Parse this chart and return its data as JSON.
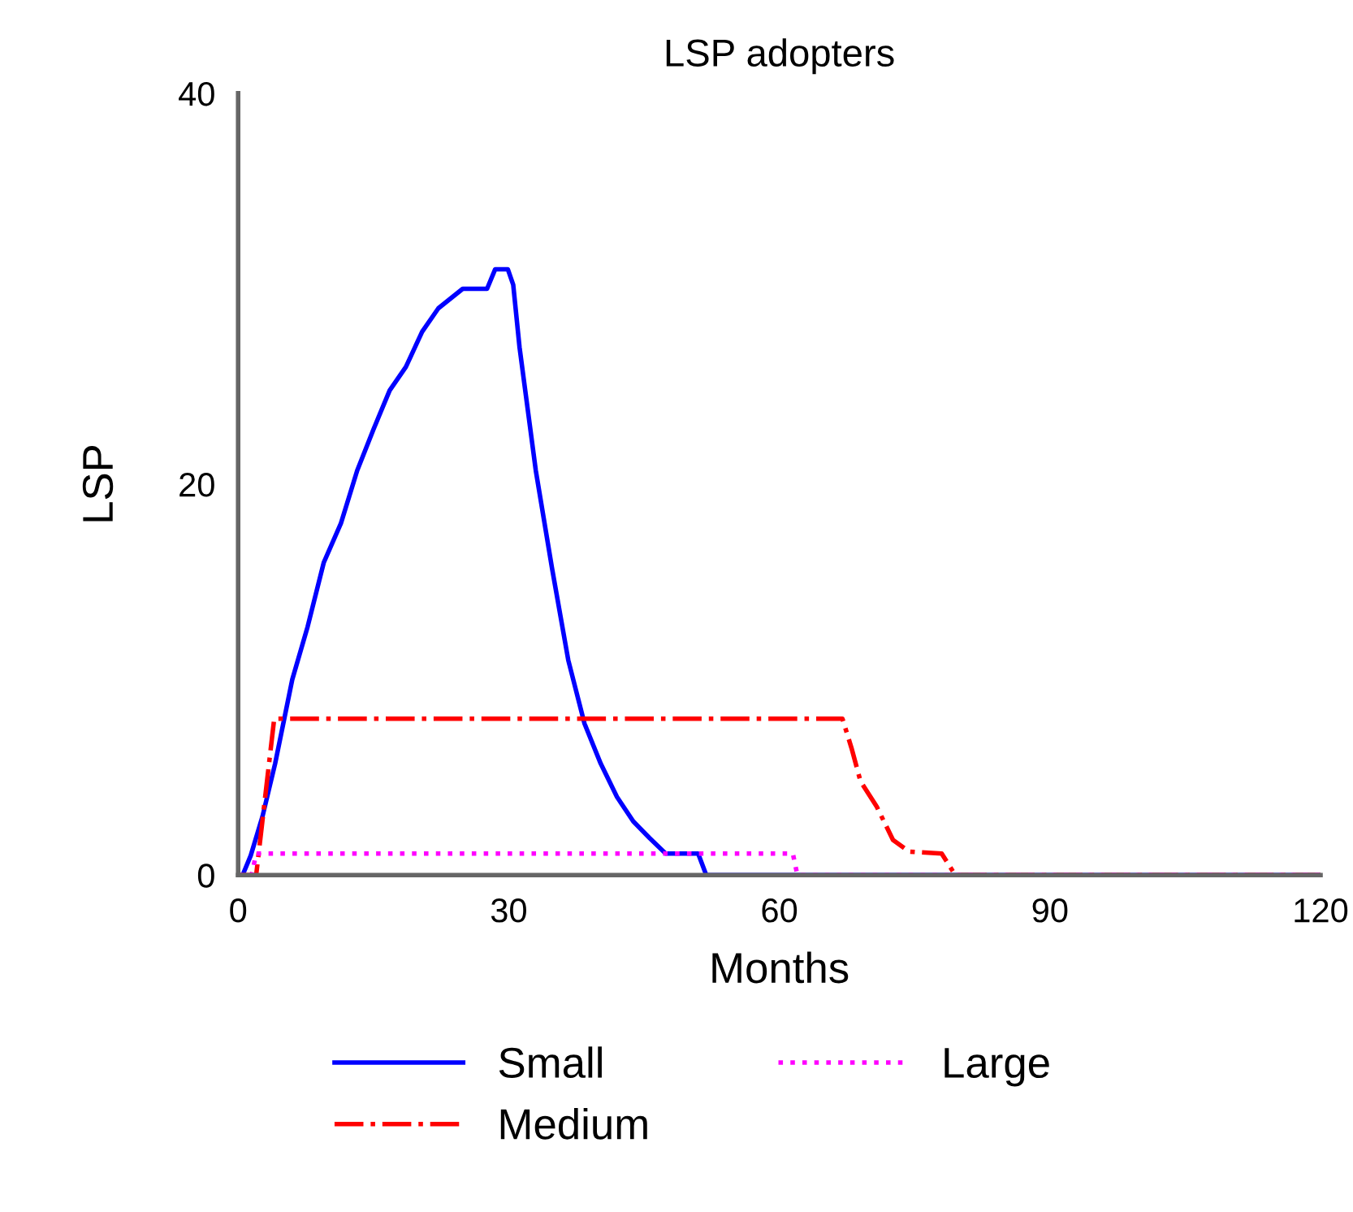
{
  "chart_data": {
    "type": "line",
    "title": "LSP adopters",
    "xlabel": "Months",
    "ylabel": "LSP",
    "xlim": [
      0,
      120
    ],
    "ylim": [
      0,
      40
    ],
    "xticks": [
      0,
      30,
      60,
      90,
      120
    ],
    "yticks": [
      0,
      20,
      40
    ],
    "grid": false,
    "legend": "bottom",
    "marker": "none",
    "series": [
      {
        "name": "Small",
        "color": "#0000ff",
        "line_style": "solid",
        "x": [
          0,
          0.5,
          1.4,
          2.7,
          4.1,
          6,
          7.7,
          9.5,
          11.4,
          13.2,
          15,
          16.8,
          18.6,
          20.4,
          22.2,
          24.9,
          27.6,
          28.5,
          29.9,
          30.5,
          31.2,
          33,
          34.8,
          36.6,
          38.4,
          40.2,
          42,
          43.8,
          45.6,
          47.4,
          51,
          51.9,
          120
        ],
        "values": [
          0,
          0,
          1,
          3,
          5.7,
          10,
          12.7,
          16,
          18,
          20.7,
          22.8,
          24.8,
          26,
          27.8,
          29,
          30,
          30,
          31,
          31,
          30.2,
          27,
          20.7,
          15.7,
          11,
          7.75,
          5.7,
          4,
          2.75,
          1.9,
          1.1,
          1.1,
          0,
          0
        ]
      },
      {
        "name": "Medium",
        "color": "#ff0000",
        "line_style": "dashdot",
        "x": [
          0,
          2,
          4,
          67,
          68,
          69,
          70.8,
          72.6,
          74.4,
          78,
          79.5,
          120
        ],
        "values": [
          0,
          0,
          8,
          8,
          6.5,
          4.8,
          3.5,
          1.8,
          1.2,
          1.1,
          0,
          0
        ]
      },
      {
        "name": "Large",
        "color": "#ff00ff",
        "line_style": "dotted",
        "x": [
          0,
          1.5,
          2,
          61.5,
          62,
          120
        ],
        "values": [
          0,
          0,
          1.1,
          1.1,
          0,
          0
        ]
      }
    ]
  }
}
